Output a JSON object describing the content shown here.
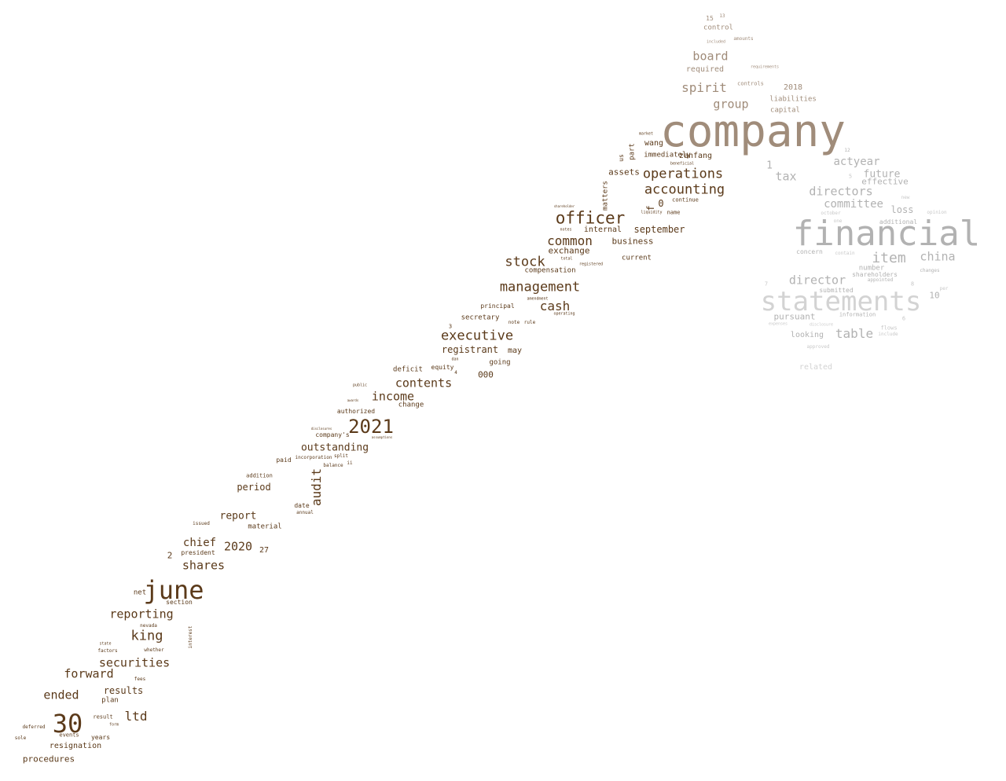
{
  "wordcloud": {
    "palette": {
      "dark_brown": "#5b3a1a",
      "taupe": "#a08c7a",
      "light_gray": "#d0d0d0",
      "mid_gray": "#b2b2b2"
    },
    "words": [
      {
        "text": "company",
        "color": "#a08c7a"
      },
      {
        "text": "financial",
        "color": "#b2b2b2"
      },
      {
        "text": "statements",
        "color": "#d3d3d3"
      },
      {
        "text": "june",
        "color": "#5b3a1a"
      },
      {
        "text": "30",
        "color": "#5b3a1a"
      },
      {
        "text": "2021",
        "color": "#5b3a1a"
      },
      {
        "text": "officer",
        "color": "#5b3a1a"
      },
      {
        "text": "operations",
        "color": "#5b3a1a"
      },
      {
        "text": "accounting",
        "color": "#5b3a1a"
      },
      {
        "text": "management",
        "color": "#5b3a1a"
      },
      {
        "text": "executive",
        "color": "#5b3a1a"
      },
      {
        "text": "stock",
        "color": "#5b3a1a"
      },
      {
        "text": "common",
        "color": "#5b3a1a"
      },
      {
        "text": "cash",
        "color": "#5b3a1a"
      },
      {
        "text": "contents",
        "color": "#5b3a1a"
      },
      {
        "text": "income",
        "color": "#5b3a1a"
      },
      {
        "text": "outstanding",
        "color": "#5b3a1a"
      },
      {
        "text": "audit",
        "color": "#5b3a1a"
      },
      {
        "text": "shares",
        "color": "#5b3a1a"
      },
      {
        "text": "chief",
        "color": "#5b3a1a"
      },
      {
        "text": "2020",
        "color": "#5b3a1a"
      },
      {
        "text": "king",
        "color": "#5b3a1a"
      },
      {
        "text": "securities",
        "color": "#5b3a1a"
      },
      {
        "text": "reporting",
        "color": "#5b3a1a"
      },
      {
        "text": "forward",
        "color": "#5b3a1a"
      },
      {
        "text": "ended",
        "color": "#5b3a1a"
      },
      {
        "text": "ltd",
        "color": "#5b3a1a"
      },
      {
        "text": "results",
        "color": "#5b3a1a"
      },
      {
        "text": "report",
        "color": "#5b3a1a"
      },
      {
        "text": "period",
        "color": "#5b3a1a"
      },
      {
        "text": "procedures",
        "color": "#5b3a1a"
      },
      {
        "text": "resignation",
        "color": "#5b3a1a"
      },
      {
        "text": "registrant",
        "color": "#5b3a1a"
      },
      {
        "text": "september",
        "color": "#5b3a1a"
      },
      {
        "text": "business",
        "color": "#5b3a1a"
      },
      {
        "text": "exchange",
        "color": "#5b3a1a"
      },
      {
        "text": "internal",
        "color": "#5b3a1a"
      },
      {
        "text": "assets",
        "color": "#5b3a1a"
      },
      {
        "text": "wang",
        "color": "#5b3a1a"
      },
      {
        "text": "zanfang",
        "color": "#5b3a1a"
      },
      {
        "text": "immediately",
        "color": "#5b3a1a"
      },
      {
        "text": "compensation",
        "color": "#5b3a1a"
      },
      {
        "text": "current",
        "color": "#5b3a1a"
      },
      {
        "text": "secretary",
        "color": "#5b3a1a"
      },
      {
        "text": "principal",
        "color": "#5b3a1a"
      },
      {
        "text": "may",
        "color": "#5b3a1a"
      },
      {
        "text": "going",
        "color": "#5b3a1a"
      },
      {
        "text": "000",
        "color": "#5b3a1a"
      },
      {
        "text": "deficit",
        "color": "#5b3a1a"
      },
      {
        "text": "equity",
        "color": "#5b3a1a"
      },
      {
        "text": "change",
        "color": "#5b3a1a"
      },
      {
        "text": "authorized",
        "color": "#5b3a1a"
      },
      {
        "text": "company's",
        "color": "#5b3a1a"
      },
      {
        "text": "paid",
        "color": "#5b3a1a"
      },
      {
        "text": "incorporation",
        "color": "#5b3a1a"
      },
      {
        "text": "balance",
        "color": "#5b3a1a"
      },
      {
        "text": "split",
        "color": "#5b3a1a"
      },
      {
        "text": "addition",
        "color": "#5b3a1a"
      },
      {
        "text": "date",
        "color": "#5b3a1a"
      },
      {
        "text": "annual",
        "color": "#5b3a1a"
      },
      {
        "text": "material",
        "color": "#5b3a1a"
      },
      {
        "text": "issued",
        "color": "#5b3a1a"
      },
      {
        "text": "president",
        "color": "#5b3a1a"
      },
      {
        "text": "27",
        "color": "#5b3a1a"
      },
      {
        "text": "2",
        "color": "#5b3a1a"
      },
      {
        "text": "net",
        "color": "#5b3a1a"
      },
      {
        "text": "section",
        "color": "#5b3a1a"
      },
      {
        "text": "nevada",
        "color": "#5b3a1a"
      },
      {
        "text": "state",
        "color": "#5b3a1a"
      },
      {
        "text": "factors",
        "color": "#5b3a1a"
      },
      {
        "text": "whether",
        "color": "#5b3a1a"
      },
      {
        "text": "interest",
        "color": "#5b3a1a"
      },
      {
        "text": "fees",
        "color": "#5b3a1a"
      },
      {
        "text": "plan",
        "color": "#5b3a1a"
      },
      {
        "text": "result",
        "color": "#5b3a1a"
      },
      {
        "text": "form",
        "color": "#5b3a1a"
      },
      {
        "text": "events",
        "color": "#5b3a1a"
      },
      {
        "text": "years",
        "color": "#5b3a1a"
      },
      {
        "text": "deferred",
        "color": "#5b3a1a"
      },
      {
        "text": "sole",
        "color": "#5b3a1a"
      },
      {
        "text": "matters",
        "color": "#5b3a1a"
      },
      {
        "text": "part",
        "color": "#5b3a1a"
      },
      {
        "text": "us",
        "color": "#5b3a1a"
      },
      {
        "text": "0",
        "color": "#5b3a1a"
      },
      {
        "text": "f",
        "color": "#5b3a1a"
      },
      {
        "text": "continue",
        "color": "#5b3a1a"
      },
      {
        "text": "name",
        "color": "#5b3a1a"
      },
      {
        "text": "liquidity",
        "color": "#5b3a1a"
      },
      {
        "text": "market",
        "color": "#5b3a1a"
      },
      {
        "text": "beneficial",
        "color": "#5b3a1a"
      },
      {
        "text": "notes",
        "color": "#5b3a1a"
      },
      {
        "text": "total",
        "color": "#5b3a1a"
      },
      {
        "text": "registered",
        "color": "#5b3a1a"
      },
      {
        "text": "operating",
        "color": "#5b3a1a"
      },
      {
        "text": "note",
        "color": "#5b3a1a"
      },
      {
        "text": "rule",
        "color": "#5b3a1a"
      },
      {
        "text": "public",
        "color": "#5b3a1a"
      },
      {
        "text": "awards",
        "color": "#5b3a1a"
      },
      {
        "text": "disclosures",
        "color": "#5b3a1a"
      },
      {
        "text": "assumptions",
        "color": "#5b3a1a"
      },
      {
        "text": "3",
        "color": "#5b3a1a"
      },
      {
        "text": "4",
        "color": "#5b3a1a"
      },
      {
        "text": "dan",
        "color": "#5b3a1a"
      },
      {
        "text": "ii",
        "color": "#5b3a1a"
      },
      {
        "text": "shareholder",
        "color": "#5b3a1a"
      },
      {
        "text": "amendment",
        "color": "#5b3a1a"
      },
      {
        "text": "board",
        "color": "#a08c7a"
      },
      {
        "text": "spirit",
        "color": "#a08c7a"
      },
      {
        "text": "group",
        "color": "#a08c7a"
      },
      {
        "text": "required",
        "color": "#a08c7a"
      },
      {
        "text": "control",
        "color": "#a08c7a"
      },
      {
        "text": "2018",
        "color": "#a08c7a"
      },
      {
        "text": "liabilities",
        "color": "#a08c7a"
      },
      {
        "text": "capital",
        "color": "#a08c7a"
      },
      {
        "text": "amounts",
        "color": "#a08c7a"
      },
      {
        "text": "15",
        "color": "#a08c7a"
      },
      {
        "text": "13",
        "color": "#a08c7a"
      },
      {
        "text": "controls",
        "color": "#a08c7a"
      },
      {
        "text": "requirements",
        "color": "#a08c7a"
      },
      {
        "text": "included",
        "color": "#a08c7a"
      },
      {
        "text": "actyear",
        "color": "#b2b2b2"
      },
      {
        "text": "future",
        "color": "#b2b2b2"
      },
      {
        "text": "effective",
        "color": "#b2b2b2"
      },
      {
        "text": "directors",
        "color": "#b2b2b2"
      },
      {
        "text": "committee",
        "color": "#b2b2b2"
      },
      {
        "text": "tax",
        "color": "#b2b2b2"
      },
      {
        "text": "1",
        "color": "#b2b2b2"
      },
      {
        "text": "loss",
        "color": "#b2b2b2"
      },
      {
        "text": "item",
        "color": "#b2b2b2"
      },
      {
        "text": "china",
        "color": "#b2b2b2"
      },
      {
        "text": "director",
        "color": "#b2b2b2"
      },
      {
        "text": "table",
        "color": "#b2b2b2"
      },
      {
        "text": "pursuant",
        "color": "#b2b2b2"
      },
      {
        "text": "looking",
        "color": "#b2b2b2"
      },
      {
        "text": "related",
        "color": "#d3d3d3"
      },
      {
        "text": "shareholders",
        "color": "#b2b2b2"
      },
      {
        "text": "number",
        "color": "#b2b2b2"
      },
      {
        "text": "additional",
        "color": "#b2b2b2"
      },
      {
        "text": "concern",
        "color": "#b2b2b2"
      },
      {
        "text": "information",
        "color": "#b2b2b2"
      },
      {
        "text": "submitted",
        "color": "#b2b2b2"
      },
      {
        "text": "10",
        "color": "#b2b2b2"
      },
      {
        "text": "12",
        "color": "#b2b2b2"
      },
      {
        "text": "changes",
        "color": "#b2b2b2"
      },
      {
        "text": "appointed",
        "color": "#b2b2b2"
      },
      {
        "text": "opinion",
        "color": "#c8c8c8"
      },
      {
        "text": "flows",
        "color": "#c8c8c8"
      },
      {
        "text": "include",
        "color": "#c8c8c8"
      },
      {
        "text": "approved",
        "color": "#c8c8c8"
      },
      {
        "text": "disclosure",
        "color": "#c8c8c8"
      },
      {
        "text": "expenses",
        "color": "#c8c8c8"
      },
      {
        "text": "contain",
        "color": "#c8c8c8"
      },
      {
        "text": "october",
        "color": "#c8c8c8"
      },
      {
        "text": "new",
        "color": "#c8c8c8"
      },
      {
        "text": "one",
        "color": "#c8c8c8"
      },
      {
        "text": "6",
        "color": "#c8c8c8"
      },
      {
        "text": "7",
        "color": "#c8c8c8"
      },
      {
        "text": "5",
        "color": "#c8c8c8"
      },
      {
        "text": "8",
        "color": "#c8c8c8"
      },
      {
        "text": "per",
        "color": "#c8c8c8"
      }
    ]
  }
}
